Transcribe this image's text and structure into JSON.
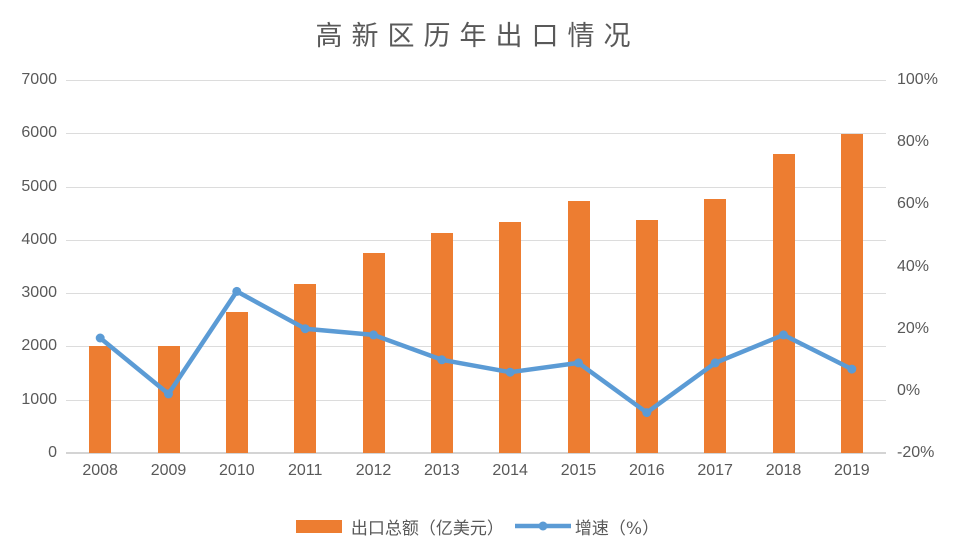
{
  "title": "高新区历年出口情况",
  "colors": {
    "bar": "#ED7D31",
    "line": "#5B9BD5",
    "grid": "#DCDCDC",
    "axis_line": "#D4D4D4",
    "text": "#595959",
    "background": "#FFFFFF"
  },
  "left_axis": {
    "ticks": [
      "7000",
      "6000",
      "5000",
      "4000",
      "3000",
      "2000",
      "1000",
      "0"
    ]
  },
  "right_axis": {
    "ticks": [
      "100%",
      "80%",
      "60%",
      "40%",
      "20%",
      "0%",
      "-20%"
    ]
  },
  "legend": {
    "bar_label": "出口总额（亿美元）",
    "line_label": "增速（%）"
  },
  "chart_data": {
    "type": "bar",
    "title": "高新区历年出口情况",
    "categories": [
      "2008",
      "2009",
      "2010",
      "2011",
      "2012",
      "2013",
      "2014",
      "2015",
      "2016",
      "2017",
      "2018",
      "2019"
    ],
    "series": [
      {
        "name": "出口总额（亿美元）",
        "type": "bar",
        "axis": "left",
        "color": "#ED7D31",
        "values": [
          2000,
          2000,
          2640,
          3170,
          3750,
          4120,
          4330,
          4720,
          4370,
          4760,
          5620,
          5980
        ]
      },
      {
        "name": "增速（%）",
        "type": "line",
        "axis": "right",
        "color": "#5B9BD5",
        "values": [
          17,
          -1,
          32,
          20,
          18,
          10,
          6,
          9,
          -7,
          9,
          18,
          7
        ]
      }
    ],
    "xlabel": "",
    "ylabel_left": "出口总额（亿美元）",
    "ylabel_right": "增速（%）",
    "left_ylim": [
      0,
      7000
    ],
    "right_ylim": [
      -20,
      100
    ],
    "left_tick_step": 1000,
    "right_tick_step": 20,
    "grid": true,
    "legend_position": "bottom"
  }
}
